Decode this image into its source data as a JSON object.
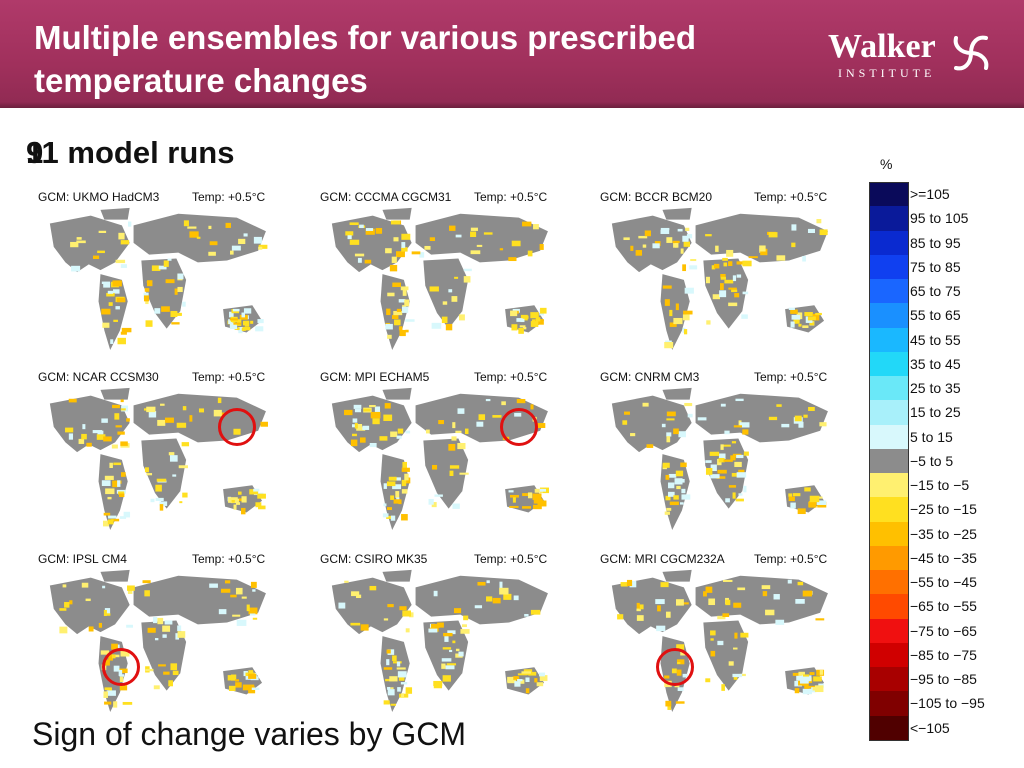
{
  "slide": {
    "title": "Multiple ensembles for various prescribed temperature changes",
    "runs_count_a": "11",
    "runs_count_b": "9",
    "runs_suffix": " model runs",
    "caption": "Sign of change varies by GCM",
    "logo_word": "Walker",
    "logo_sub": "INSTITUTE",
    "unit": "%"
  },
  "panels": [
    {
      "gcm": "GCM: UKMO HadCM3",
      "temp": "Temp: +0.5°C"
    },
    {
      "gcm": "GCM: CCCMA CGCM31",
      "temp": "Temp: +0.5°C"
    },
    {
      "gcm": "GCM: BCCR BCM20",
      "temp": "Temp: +0.5°C"
    },
    {
      "gcm": "GCM: NCAR CCSM30",
      "temp": "Temp: +0.5°C"
    },
    {
      "gcm": "GCM: MPI ECHAM5",
      "temp": "Temp: +0.5°C"
    },
    {
      "gcm": "GCM: CNRM CM3",
      "temp": "Temp: +0.5°C"
    },
    {
      "gcm": "GCM: IPSL CM4",
      "temp": "Temp: +0.5°C"
    },
    {
      "gcm": "GCM: CSIRO MK35",
      "temp": "Temp: +0.5°C"
    },
    {
      "gcm": "GCM: MRI CGCM232A",
      "temp": "Temp: +0.5°C"
    }
  ],
  "legend": [
    {
      "label": ">=105",
      "color": "#0a0a5a"
    },
    {
      "label": "95 to 105",
      "color": "#0a1a9a"
    },
    {
      "label": "85 to 95",
      "color": "#0a2ad0"
    },
    {
      "label": "75 to 85",
      "color": "#1040f0"
    },
    {
      "label": "65 to 75",
      "color": "#1a66ff"
    },
    {
      "label": "55 to 65",
      "color": "#1a90ff"
    },
    {
      "label": "45 to 55",
      "color": "#1ab8ff"
    },
    {
      "label": "35 to 45",
      "color": "#22d8f8"
    },
    {
      "label": "25 to 35",
      "color": "#6ae8f8"
    },
    {
      "label": "15 to 25",
      "color": "#a8f0fa"
    },
    {
      "label": "5 to 15",
      "color": "#d8f8fc"
    },
    {
      "label": "−5 to 5",
      "color": "#8c8c8c"
    },
    {
      "label": "−15 to −5",
      "color": "#fff070"
    },
    {
      "label": "−25 to −15",
      "color": "#ffe020"
    },
    {
      "label": "−35 to −25",
      "color": "#ffc000"
    },
    {
      "label": "−45 to −35",
      "color": "#ff9a00"
    },
    {
      "label": "−55 to −45",
      "color": "#ff7000"
    },
    {
      "label": "−65 to −55",
      "color": "#ff4a00"
    },
    {
      "label": "−75 to −65",
      "color": "#f01010"
    },
    {
      "label": "−85 to −75",
      "color": "#d00000"
    },
    {
      "label": "−95 to −85",
      "color": "#a80000"
    },
    {
      "label": "−105 to −95",
      "color": "#800000"
    },
    {
      "label": "<−105",
      "color": "#500000"
    }
  ]
}
